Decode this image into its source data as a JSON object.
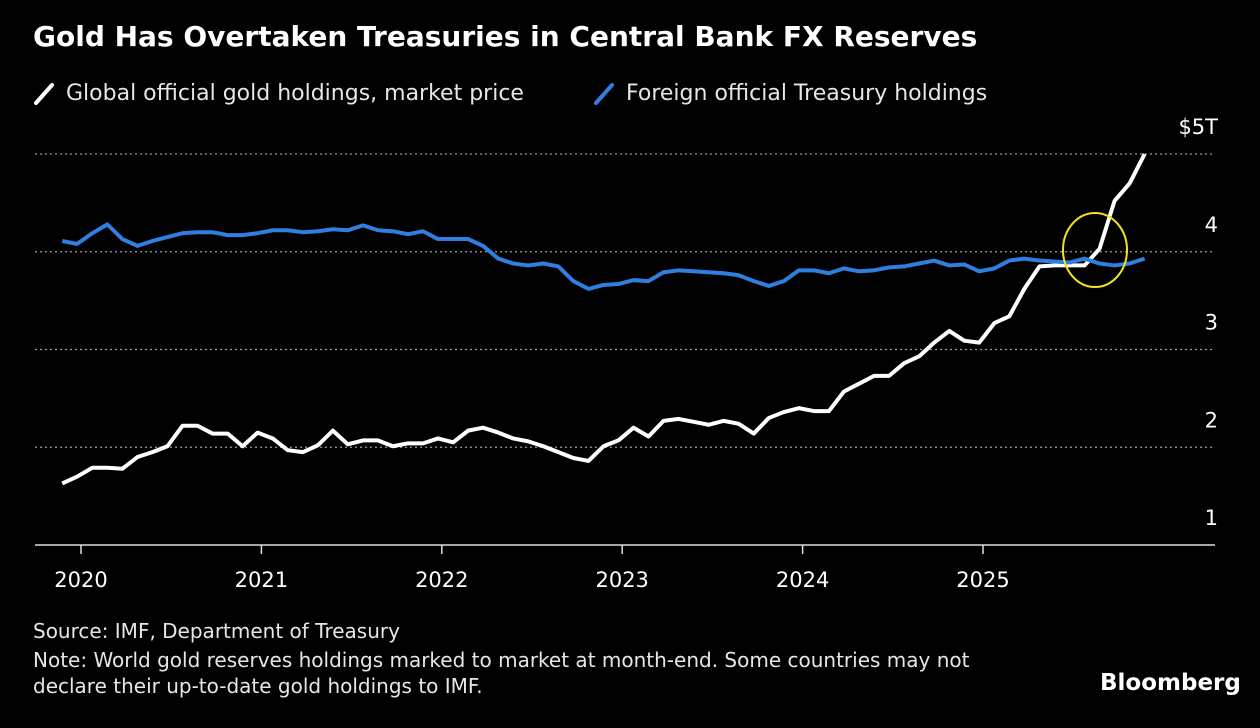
{
  "chart_data": {
    "type": "line",
    "title": "Gold Has Overtaken Treasuries in Central Bank FX Reserves",
    "source": "Source: IMF, Department of Treasury",
    "note": "Note: World gold reserves holdings marked to market at month-end. Some countries may not declare their up-to-date gold holdings to IMF.",
    "brand": "Bloomberg",
    "x": [
      2019.896,
      2019.979,
      2020.063,
      2020.146,
      2020.229,
      2020.313,
      2020.396,
      2020.479,
      2020.563,
      2020.646,
      2020.729,
      2020.813,
      2020.896,
      2020.979,
      2021.063,
      2021.146,
      2021.229,
      2021.313,
      2021.396,
      2021.479,
      2021.563,
      2021.646,
      2021.729,
      2021.813,
      2021.896,
      2021.979,
      2022.063,
      2022.146,
      2022.229,
      2022.313,
      2022.396,
      2022.479,
      2022.563,
      2022.646,
      2022.729,
      2022.813,
      2022.896,
      2022.979,
      2023.063,
      2023.146,
      2023.229,
      2023.313,
      2023.396,
      2023.479,
      2023.563,
      2023.646,
      2023.729,
      2023.813,
      2023.896,
      2023.979,
      2024.063,
      2024.146,
      2024.229,
      2024.313,
      2024.396,
      2024.479,
      2024.563,
      2024.646,
      2024.729,
      2024.813,
      2024.896,
      2024.979,
      2025.063,
      2025.146,
      2025.229,
      2025.313,
      2025.396,
      2025.479,
      2025.563,
      2025.646,
      2025.729,
      2025.813,
      2025.896
    ],
    "series": [
      {
        "name": "Global official gold holdings, market price",
        "color": "#ffffff",
        "values": [
          1.63,
          1.7,
          1.79,
          1.79,
          1.78,
          1.9,
          1.95,
          2.01,
          2.22,
          2.22,
          2.14,
          2.14,
          2.01,
          2.15,
          2.09,
          1.97,
          1.95,
          2.02,
          2.17,
          2.03,
          2.07,
          2.07,
          2.01,
          2.04,
          2.04,
          2.09,
          2.05,
          2.17,
          2.2,
          2.15,
          2.09,
          2.06,
          2.01,
          1.95,
          1.89,
          1.86,
          2.01,
          2.07,
          2.2,
          2.11,
          2.27,
          2.29,
          2.26,
          2.23,
          2.27,
          2.24,
          2.14,
          2.3,
          2.36,
          2.4,
          2.37,
          2.37,
          2.57,
          2.65,
          2.73,
          2.73,
          2.86,
          2.93,
          3.07,
          3.19,
          3.09,
          3.07,
          3.27,
          3.34,
          3.62,
          3.85,
          3.86,
          3.86,
          3.86,
          4.03,
          4.52,
          4.7,
          5.0
        ]
      },
      {
        "name": "Foreign official Treasury holdings",
        "color": "#2f7fe0",
        "values": [
          4.11,
          4.08,
          4.19,
          4.28,
          4.13,
          4.06,
          4.11,
          4.15,
          4.19,
          4.2,
          4.2,
          4.17,
          4.17,
          4.19,
          4.22,
          4.22,
          4.2,
          4.21,
          4.23,
          4.22,
          4.27,
          4.22,
          4.21,
          4.18,
          4.21,
          4.13,
          4.13,
          4.13,
          4.06,
          3.93,
          3.88,
          3.86,
          3.88,
          3.85,
          3.7,
          3.62,
          3.66,
          3.67,
          3.71,
          3.7,
          3.79,
          3.81,
          3.8,
          3.79,
          3.78,
          3.76,
          3.7,
          3.65,
          3.7,
          3.81,
          3.81,
          3.78,
          3.83,
          3.8,
          3.81,
          3.84,
          3.85,
          3.88,
          3.91,
          3.86,
          3.87,
          3.8,
          3.83,
          3.91,
          3.93,
          3.91,
          3.9,
          3.89,
          3.93,
          3.88,
          3.86,
          3.88,
          3.93
        ]
      }
    ],
    "xlim": [
      2019.745,
      2026.286
    ],
    "xticks": [
      2020,
      2021,
      2022,
      2023,
      2024,
      2025
    ],
    "ylim": [
      1,
      5
    ],
    "yticks": [
      1,
      2,
      3,
      4,
      {
        "value": 5,
        "label": "$5T"
      }
    ],
    "grid": true
  }
}
